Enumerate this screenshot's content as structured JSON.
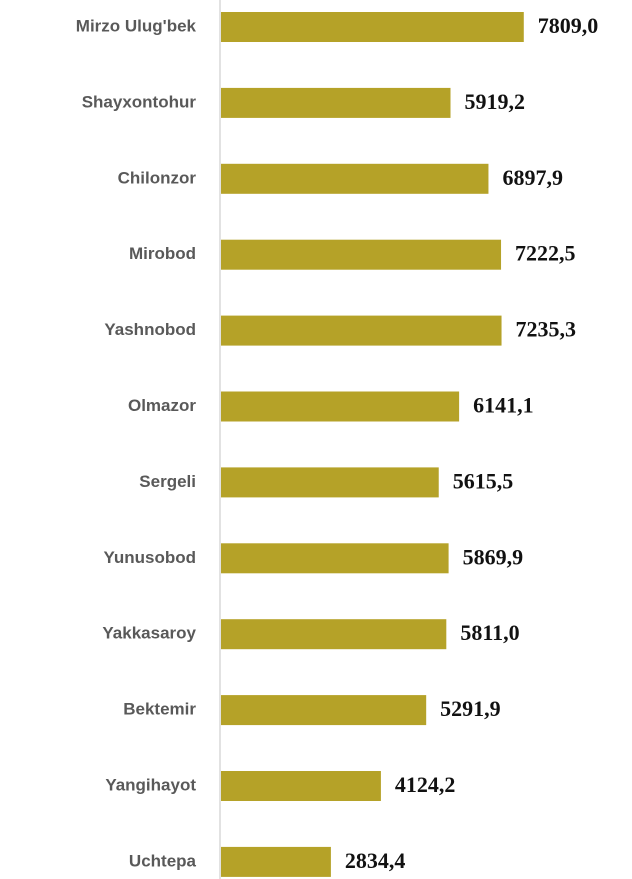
{
  "chart_data": {
    "type": "bar",
    "orientation": "horizontal",
    "categories": [
      "Mirzo Ulug'bek",
      "Shayxontohur",
      "Chilonzor",
      "Mirobod",
      "Yashnobod",
      "Olmazor",
      "Sergeli",
      "Yunusobod",
      "Yakkasaroy",
      "Bektemir",
      "Yangihayot",
      "Uchtepa"
    ],
    "values": [
      7809.0,
      5919.2,
      6897.9,
      7222.5,
      7235.3,
      6141.1,
      5615.5,
      5869.9,
      5811.0,
      5291.9,
      4124.2,
      2834.4
    ],
    "value_labels": [
      "7809,0",
      "5919,2",
      "6897,9",
      "7222,5",
      "7235,3",
      "6141,1",
      "5615,5",
      "5869,9",
      "5811,0",
      "5291,9",
      "4124,2",
      "2834,4"
    ],
    "color": "#b5a228",
    "xlim": [
      0,
      10600
    ]
  }
}
